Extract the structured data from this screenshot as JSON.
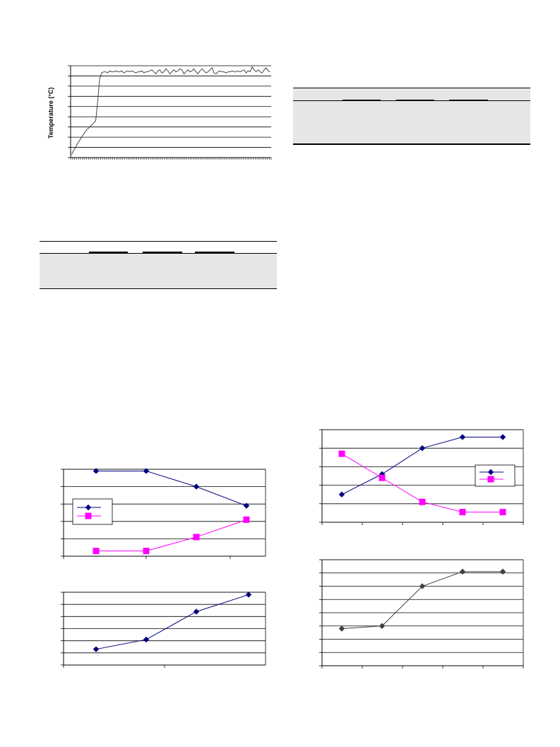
{
  "chart_data": [
    {
      "type": "line",
      "title": "",
      "xlabel": "",
      "ylabel": "Temperature (°C)",
      "x": [
        0,
        1,
        2,
        3,
        4,
        5,
        6,
        7,
        8,
        9,
        10,
        11,
        12,
        13,
        14,
        15,
        16,
        17,
        18,
        19,
        20,
        21,
        22,
        23,
        24,
        25,
        26,
        27,
        28,
        29,
        30,
        31,
        32,
        33,
        34,
        35,
        36,
        37,
        38,
        39,
        40,
        41,
        42,
        43,
        44,
        45,
        46,
        47,
        48,
        49,
        50,
        51,
        52,
        53,
        54,
        55,
        56,
        57,
        58,
        59,
        60,
        61,
        62,
        63,
        64,
        65,
        66,
        67,
        68,
        69,
        70,
        71,
        72,
        73,
        74,
        75,
        76,
        77,
        78,
        79,
        80,
        81,
        82,
        83,
        84,
        85,
        86,
        87,
        88,
        89,
        90,
        91,
        92,
        93,
        94,
        95,
        96,
        97,
        98,
        99
      ],
      "series": [
        {
          "values": [
            0.3,
            0.7,
            1.0,
            1.4,
            1.7,
            2.0,
            2.3,
            2.6,
            2.8,
            3.0,
            3.2,
            3.4,
            3.6,
            5.5,
            7.8,
            8.3,
            8.4,
            8.4,
            8.3,
            8.5,
            8.4,
            8.4,
            8.5,
            8.4,
            8.4,
            8.5,
            8.3,
            8.4,
            8.5,
            8.4,
            8.5,
            8.4,
            8.3,
            8.4,
            8.4,
            8.5,
            8.3,
            8.4,
            8.4,
            8.5,
            8.6,
            8.4,
            8.2,
            8.5,
            8.6,
            8.3,
            8.4,
            8.7,
            8.5,
            8.2,
            8.4,
            8.6,
            8.4,
            8.5,
            8.7,
            8.6,
            8.2,
            8.4,
            8.6,
            8.4,
            8.5,
            8.7,
            8.4,
            8.2,
            8.5,
            8.7,
            8.5,
            8.3,
            8.4,
            8.6,
            8.8,
            8.3,
            8.2,
            8.4,
            8.5,
            8.4,
            8.4,
            8.3,
            8.4,
            8.4,
            8.5,
            8.4,
            8.4,
            8.5,
            8.4,
            8.5,
            8.6,
            8.3,
            8.5,
            8.4,
            8.9,
            8.6,
            8.4,
            8.6,
            8.4,
            8.3,
            8.6,
            8.8,
            8.5,
            8.4
          ]
        }
      ],
      "ylim": [
        0,
        9
      ],
      "grid": true,
      "legend": "none"
    },
    {
      "type": "line",
      "title": "",
      "xlabel": "",
      "ylabel": "",
      "x": [
        1,
        2,
        3,
        4
      ],
      "series": [
        {
          "values": [
            4.9,
            4.9,
            4.0,
            2.9
          ],
          "color": "#00007f",
          "marker": "diamond"
        },
        {
          "values": [
            0.3,
            0.3,
            1.1,
            2.1
          ],
          "color": "#ff00ff",
          "marker": "square"
        }
      ],
      "ylim": [
        0,
        5
      ],
      "grid": true,
      "legend": "left"
    },
    {
      "type": "line",
      "title": "",
      "xlabel": "",
      "ylabel": "",
      "x": [
        1,
        2,
        3,
        4
      ],
      "series": [
        {
          "values": [
            1.3,
            2.1,
            4.4,
            5.8
          ],
          "color": "#00007f",
          "marker": "diamond"
        }
      ],
      "ylim": [
        0,
        6
      ],
      "grid": true,
      "legend": "none"
    },
    {
      "type": "line",
      "title": "",
      "xlabel": "",
      "ylabel": "",
      "x": [
        1,
        2,
        3,
        4,
        5
      ],
      "series": [
        {
          "values": [
            1.5,
            2.6,
            4.0,
            4.6,
            4.6
          ],
          "color": "#00007f",
          "marker": "diamond"
        },
        {
          "values": [
            3.7,
            2.4,
            1.1,
            0.55,
            0.55
          ],
          "color": "#ff00ff",
          "marker": "square"
        }
      ],
      "ylim": [
        0,
        5
      ],
      "grid": true,
      "legend": "right"
    },
    {
      "type": "line",
      "title": "",
      "xlabel": "",
      "ylabel": "",
      "x": [
        1,
        2,
        3,
        4,
        5
      ],
      "series": [
        {
          "values": [
            2.8,
            3.0,
            6.0,
            7.1,
            7.1
          ],
          "color": "#404040",
          "marker": "diamond"
        }
      ],
      "ylim": [
        0,
        8
      ],
      "grid": true,
      "legend": "none"
    }
  ],
  "tables": {
    "left": {
      "rows": 3
    },
    "right": {
      "rows": 3
    }
  }
}
